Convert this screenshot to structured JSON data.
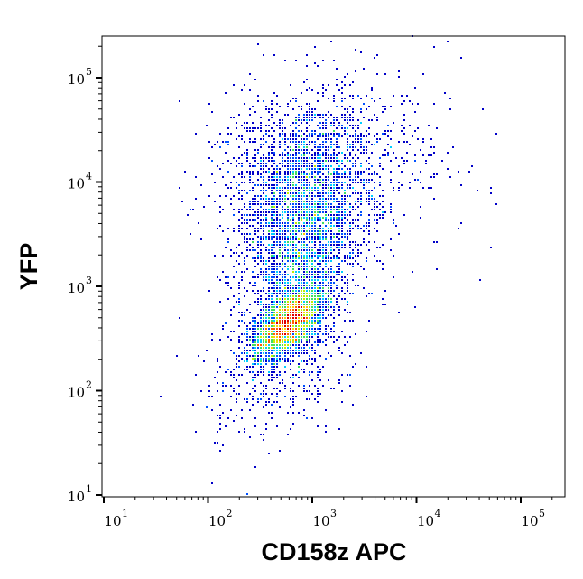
{
  "chart_data": {
    "type": "scatter",
    "subtype": "density-dot-plot",
    "xlabel": "CD158z APC",
    "ylabel": "YFP",
    "xscale": "log",
    "yscale": "log",
    "xlim": [
      10,
      263000
    ],
    "ylim": [
      10,
      263000
    ],
    "grid": false,
    "x_ticks": [
      {
        "value": 10,
        "base": "10",
        "exp": "1"
      },
      {
        "value": 100,
        "base": "10",
        "exp": "2"
      },
      {
        "value": 1000,
        "base": "10",
        "exp": "3"
      },
      {
        "value": 10000,
        "base": "10",
        "exp": "4"
      },
      {
        "value": 100000,
        "base": "10",
        "exp": "5"
      }
    ],
    "y_ticks": [
      {
        "value": 10,
        "base": "10",
        "exp": "1"
      },
      {
        "value": 100,
        "base": "10",
        "exp": "2"
      },
      {
        "value": 1000,
        "base": "10",
        "exp": "3"
      },
      {
        "value": 10000,
        "base": "10",
        "exp": "4"
      },
      {
        "value": 100000,
        "base": "10",
        "exp": "5"
      }
    ],
    "populations": [
      {
        "center": [
          600,
          450
        ],
        "log_sd": [
          0.17,
          0.17
        ],
        "correlation": 0.6,
        "events": 2600
      },
      {
        "center": [
          750,
          1800
        ],
        "log_sd": [
          0.25,
          0.45
        ],
        "correlation": 0.2,
        "events": 1800
      },
      {
        "center": [
          900,
          9000
        ],
        "log_sd": [
          0.38,
          0.45
        ],
        "correlation": 0.1,
        "events": 2200
      },
      {
        "center": [
          500,
          200
        ],
        "log_sd": [
          0.35,
          0.4
        ],
        "correlation": 0.3,
        "events": 500
      },
      {
        "center": [
          3000,
          20000
        ],
        "log_sd": [
          0.6,
          0.4
        ],
        "correlation": 0.0,
        "events": 300
      }
    ],
    "density_colors": [
      "#0000c8",
      "#0050ff",
      "#00d0ff",
      "#40e060",
      "#c0f000",
      "#ffd000",
      "#ff6000",
      "#e00000"
    ]
  }
}
